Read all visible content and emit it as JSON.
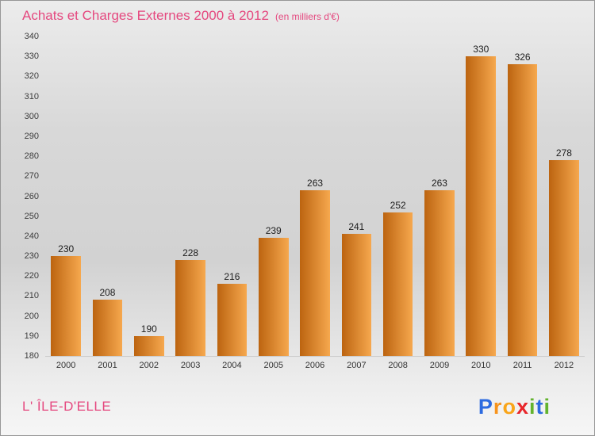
{
  "header": {
    "title": "Achats et Charges Externes 2000 à 2012",
    "subtitle": "(en milliers d'€)",
    "title_color": "#e5487f"
  },
  "chart_data": {
    "type": "bar",
    "title": "Achats et Charges Externes 2000 à 2012",
    "subtitle": "(en milliers d'€)",
    "categories": [
      "2000",
      "2001",
      "2002",
      "2003",
      "2004",
      "2005",
      "2006",
      "2007",
      "2008",
      "2009",
      "2010",
      "2011",
      "2012"
    ],
    "values": [
      230,
      208,
      190,
      228,
      216,
      239,
      263,
      241,
      252,
      263,
      330,
      326,
      278
    ],
    "xlabel": "",
    "ylabel": "",
    "ylim": [
      180,
      340
    ],
    "yticks": [
      180,
      190,
      200,
      210,
      220,
      230,
      240,
      250,
      260,
      270,
      280,
      290,
      300,
      310,
      320,
      330,
      340
    ],
    "grid": false,
    "legend": "none",
    "value_labels_shown": true,
    "bar_gradient": [
      "#bc6410",
      "#f6a84e"
    ]
  },
  "footer": {
    "place_name": "L' ÎLE-D'ELLE",
    "place_color": "#e5487f",
    "logo": [
      {
        "char": "P",
        "color": "#2d6be0"
      },
      {
        "char": "r",
        "color": "#f7941d"
      },
      {
        "char": "o",
        "color": "#f9a51a"
      },
      {
        "char": "x",
        "color": "#e8262b"
      },
      {
        "char": "i",
        "color": "#63b32e"
      },
      {
        "char": "t",
        "color": "#2d6be0"
      },
      {
        "char": "i",
        "color": "#63b32e"
      }
    ]
  }
}
